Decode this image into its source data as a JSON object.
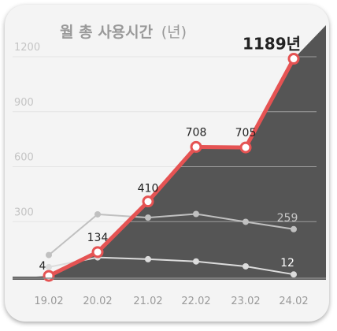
{
  "chart_data": {
    "type": "line",
    "title": "월 총 사용시간",
    "title_unit": "(년)",
    "categories": [
      "19.02",
      "20.02",
      "21.02",
      "22.02",
      "23.02",
      "24.02"
    ],
    "yticks": [
      "1200",
      "900",
      "600",
      "300"
    ],
    "ylim": [
      0,
      1200
    ],
    "grid": true,
    "series": [
      {
        "values": [
          4,
          134,
          410,
          708,
          705,
          1189
        ],
        "labels": [
          "4",
          "134",
          "410",
          "708",
          "705",
          "1189년"
        ],
        "color": "#e55353"
      },
      {
        "values": [
          118,
          340,
          322,
          342,
          299,
          259
        ],
        "labels": [
          "",
          "",
          "",
          "",
          "",
          "259"
        ],
        "color": "#c0c0c0"
      },
      {
        "values": [
          52,
          105,
          95,
          83,
          56,
          12
        ],
        "labels": [
          "",
          "",
          "",
          "",
          "",
          "12"
        ],
        "color": "#dcdcdc"
      }
    ],
    "area_color": "#555555",
    "background": "#f4f4f4"
  }
}
